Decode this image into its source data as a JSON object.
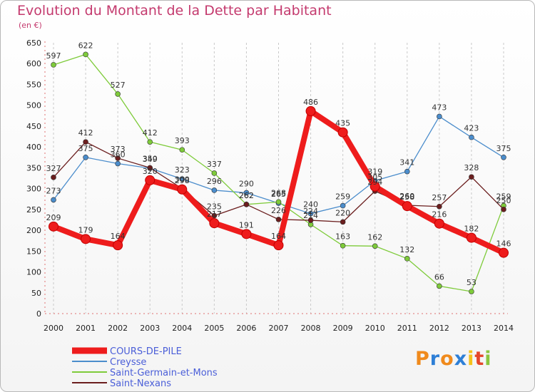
{
  "title": "Evolution du Montant de la Dette par Habitant",
  "unit": "(en €)",
  "logo": {
    "letters": [
      "P",
      "r",
      "o",
      "x",
      "i",
      "t",
      "i"
    ],
    "colors": [
      "#f08a1c",
      "#2e7fd6",
      "#f08a1c",
      "#2e7fd6",
      "#f5c21b",
      "#e5462a",
      "#8cc63f"
    ]
  },
  "chart_data": {
    "type": "line",
    "title": "Evolution du Montant de la Dette par Habitant",
    "ylabel": "(en €)",
    "xlabel": "",
    "x": [
      "2000",
      "2001",
      "2002",
      "2003",
      "2004",
      "2005",
      "2006",
      "2007",
      "2008",
      "2009",
      "2010",
      "2011",
      "2012",
      "2013",
      "2014"
    ],
    "ylim": [
      0,
      650
    ],
    "yticks": [
      0,
      50,
      100,
      150,
      200,
      250,
      300,
      350,
      400,
      450,
      500,
      550,
      600,
      650
    ],
    "grid": "vertical dashed",
    "legend": "bottom-left",
    "series": [
      {
        "name": "COURS-DE-PILE",
        "color": "#ee1c1c",
        "values": [
          209,
          179,
          164,
          320,
          298,
          217,
          191,
          164,
          486,
          435,
          305,
          258,
          216,
          182,
          146
        ]
      },
      {
        "name": "Creysse",
        "color": "#4b8dcc",
        "values": [
          273,
          375,
          360,
          349,
          323,
          296,
          290,
          265,
          240,
          259,
          319,
          341,
          473,
          423,
          375
        ]
      },
      {
        "name": "Saint-Germain-et-Mons",
        "color": "#7ecb3a",
        "values": [
          597,
          622,
          527,
          412,
          393,
          337,
          262,
          268,
          214,
          163,
          162,
          132,
          66,
          53,
          259
        ]
      },
      {
        "name": "Saint-Nexans",
        "color": "#6b1e1e",
        "values": [
          327,
          412,
          373,
          350,
          300,
          235,
          262,
          226,
          224,
          220,
          294,
          260,
          257,
          328,
          250
        ]
      }
    ]
  }
}
